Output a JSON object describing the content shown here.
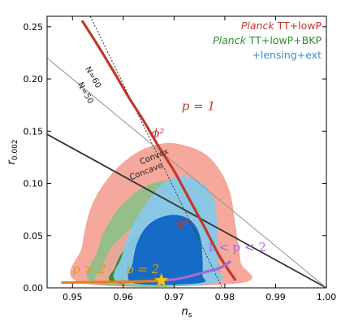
{
  "chart_data": {
    "type": "scatter",
    "xlabel_main": "n",
    "xlabel_sub": "s",
    "ylabel_main": "r",
    "ylabel_sub": "0.002",
    "xlim": [
      0.945,
      1.0
    ],
    "ylim": [
      0.0,
      0.26
    ],
    "x_ticks": [
      0.95,
      0.96,
      0.97,
      0.98,
      0.99,
      1.0
    ],
    "x_tick_labels": [
      "0.95",
      "0.96",
      "0.97",
      "0.98",
      "0.99",
      "1.00"
    ],
    "y_ticks": [
      0.0,
      0.05,
      0.1,
      0.15,
      0.2,
      0.25
    ],
    "y_tick_labels": [
      "0.00",
      "0.05",
      "0.10",
      "0.15",
      "0.20",
      "0.25"
    ],
    "legend": {
      "position": "top-right",
      "entries": [
        {
          "italic": "Planck",
          "rest": " TT+lowP",
          "color": "#c0392b"
        },
        {
          "italic": "Planck",
          "rest": " TT+lowP+BKP",
          "color": "#2e8b2e"
        },
        {
          "italic": "",
          "rest": "+lensing+ext",
          "color": "#3a8fd9"
        }
      ]
    },
    "contours": [
      {
        "color": "#f4a396",
        "points": [
          [
            0.952,
            0.005
          ],
          [
            0.952,
            0.04
          ],
          [
            0.954,
            0.08
          ],
          [
            0.958,
            0.11
          ],
          [
            0.963,
            0.13
          ],
          [
            0.968,
            0.138
          ],
          [
            0.972,
            0.136
          ],
          [
            0.976,
            0.128
          ],
          [
            0.979,
            0.112
          ],
          [
            0.981,
            0.09
          ],
          [
            0.982,
            0.06
          ],
          [
            0.983,
            0.025
          ],
          [
            0.983,
            0.005
          ]
        ]
      },
      {
        "color": "#8fbf8a",
        "points": [
          [
            0.9545,
            0.005
          ],
          [
            0.955,
            0.035
          ],
          [
            0.957,
            0.06
          ],
          [
            0.961,
            0.085
          ],
          [
            0.966,
            0.1
          ],
          [
            0.971,
            0.102
          ],
          [
            0.975,
            0.095
          ],
          [
            0.977,
            0.08
          ],
          [
            0.978,
            0.06
          ],
          [
            0.978,
            0.035
          ],
          [
            0.977,
            0.005
          ]
        ]
      },
      {
        "color": "#e8a899",
        "points": [
          [
            0.956,
            0.005
          ],
          [
            0.956,
            0.02
          ],
          [
            0.958,
            0.04
          ],
          [
            0.962,
            0.058
          ],
          [
            0.966,
            0.068
          ],
          [
            0.97,
            0.07
          ],
          [
            0.973,
            0.066
          ],
          [
            0.975,
            0.055
          ],
          [
            0.976,
            0.04
          ],
          [
            0.976,
            0.02
          ],
          [
            0.976,
            0.005
          ]
        ]
      },
      {
        "color": "#2e8b2e",
        "points": [
          [
            0.9585,
            0.005
          ],
          [
            0.9585,
            0.02
          ],
          [
            0.96,
            0.035
          ],
          [
            0.962,
            0.048
          ],
          [
            0.965,
            0.056
          ],
          [
            0.969,
            0.058
          ],
          [
            0.972,
            0.055
          ],
          [
            0.974,
            0.045
          ],
          [
            0.975,
            0.03
          ],
          [
            0.975,
            0.015
          ],
          [
            0.975,
            0.005
          ]
        ]
      },
      {
        "color": "#88c8ea",
        "points": [
          [
            0.9595,
            0.005
          ],
          [
            0.9598,
            0.03
          ],
          [
            0.9615,
            0.055
          ],
          [
            0.9645,
            0.08
          ],
          [
            0.968,
            0.1
          ],
          [
            0.971,
            0.106
          ],
          [
            0.974,
            0.104
          ],
          [
            0.9765,
            0.095
          ],
          [
            0.978,
            0.08
          ],
          [
            0.9785,
            0.05
          ],
          [
            0.9785,
            0.02
          ],
          [
            0.978,
            0.005
          ]
        ]
      },
      {
        "color": "#0f66c4",
        "points": [
          [
            0.962,
            0.005
          ],
          [
            0.962,
            0.025
          ],
          [
            0.963,
            0.045
          ],
          [
            0.965,
            0.06
          ],
          [
            0.968,
            0.068
          ],
          [
            0.971,
            0.069
          ],
          [
            0.9735,
            0.063
          ],
          [
            0.975,
            0.05
          ],
          [
            0.9755,
            0.03
          ],
          [
            0.9755,
            0.012
          ],
          [
            0.975,
            0.005
          ]
        ]
      }
    ],
    "lines": [
      {
        "name": "convex-concave-boundary",
        "color": "#333333",
        "width": 1.8,
        "points": [
          [
            0.945,
            0.147
          ],
          [
            1.0,
            0.0
          ]
        ]
      },
      {
        "name": "p1-grey-line",
        "color": "#999999",
        "width": 1.1,
        "points": [
          [
            0.945,
            0.22
          ],
          [
            1.0,
            0.0
          ]
        ]
      },
      {
        "name": "n50-dotted-line",
        "color": "#333333",
        "width": 1.0,
        "dash": "2,2",
        "points": [
          [
            0.9535,
            0.26
          ],
          [
            0.9795,
            0.0
          ]
        ]
      }
    ],
    "series": [
      {
        "name": "phi2-curve",
        "color": "#c0392b",
        "points": [
          [
            0.952,
            0.255
          ],
          [
            0.955,
            0.232
          ],
          [
            0.958,
            0.208
          ],
          [
            0.961,
            0.183
          ],
          [
            0.964,
            0.16
          ],
          [
            0.967,
            0.135
          ],
          [
            0.97,
            0.112
          ],
          [
            0.973,
            0.085
          ],
          [
            0.976,
            0.058
          ],
          [
            0.979,
            0.03
          ],
          [
            0.982,
            0.008
          ]
        ]
      },
      {
        "name": "p2-orange-curve",
        "color": "#e67e22",
        "points": [
          [
            0.948,
            0.005
          ],
          [
            0.955,
            0.0055
          ],
          [
            0.962,
            0.006
          ],
          [
            0.967,
            0.0065
          ],
          [
            0.9675,
            0.007
          ]
        ]
      },
      {
        "name": "purple-curve",
        "color": "#a569d8",
        "points": [
          [
            0.9675,
            0.007
          ],
          [
            0.97,
            0.008
          ],
          [
            0.973,
            0.011
          ],
          [
            0.976,
            0.015
          ],
          [
            0.979,
            0.019
          ],
          [
            0.981,
            0.025
          ]
        ]
      }
    ],
    "star": {
      "x": 0.9675,
      "y": 0.007,
      "color": "#f5c518"
    },
    "annotations": [
      {
        "text": "N=60",
        "x": 0.9525,
        "y": 0.21,
        "color": "#222222",
        "rotate": 60,
        "font": "small"
      },
      {
        "text": "N=50",
        "x": 0.951,
        "y": 0.195,
        "color": "#222222",
        "rotate": 60,
        "font": "small"
      },
      {
        "text": "p = 1",
        "x": 0.9715,
        "y": 0.17,
        "color": "#c0392b",
        "font": "serif"
      },
      {
        "text": "ϕ²",
        "x": 0.9655,
        "y": 0.144,
        "color": "#c0392b",
        "font": "serif-small"
      },
      {
        "text": "ϕ⁴",
        "x": 0.9705,
        "y": 0.058,
        "color": "#c0392b",
        "font": "serif-small"
      },
      {
        "text": "Convex",
        "x": 0.9635,
        "y": 0.118,
        "color": "#222222",
        "rotate": -22,
        "font": "small"
      },
      {
        "text": "Concave",
        "x": 0.9615,
        "y": 0.103,
        "color": "#222222",
        "rotate": -22,
        "font": "small"
      },
      {
        "text": "p > 2",
        "x": 0.95,
        "y": 0.014,
        "color": "#d4a017",
        "font": "serif"
      },
      {
        "text": "p = 2",
        "x": 0.9605,
        "y": 0.014,
        "color": "#d4a017",
        "font": "serif"
      },
      {
        "text": "1 < p < 2",
        "x": 0.9765,
        "y": 0.035,
        "color": "#a569d8",
        "font": "serif-mid"
      }
    ],
    "grid": false
  }
}
